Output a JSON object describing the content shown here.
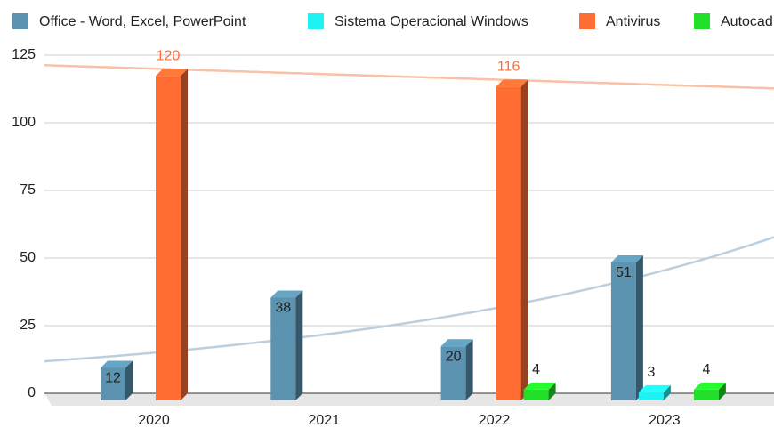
{
  "chart_data": {
    "type": "bar3d",
    "categories": [
      "2020",
      "2021",
      "2022",
      "2023"
    ],
    "series": [
      {
        "name": "Office - Word, Excel, PowerPoint",
        "color": "#5b93b0",
        "label_color": "#222222",
        "label_inside": true,
        "trendline": "exponential",
        "trend_color": "#bccfdf",
        "values": [
          12,
          38,
          20,
          51
        ]
      },
      {
        "name": "Sistema Operacional Windows",
        "color": "#1ef2f5",
        "label_color": "#222222",
        "values": [
          null,
          null,
          null,
          3
        ]
      },
      {
        "name": "Antivirus",
        "color": "#ff6d33",
        "label_color": "#ff6d33",
        "trendline": "linear",
        "trend_color": "#f9c2a8",
        "values": [
          120,
          null,
          116,
          null
        ]
      },
      {
        "name": "Autocad",
        "color": "#22e02a",
        "label_color": "#222222",
        "values": [
          null,
          null,
          4,
          4
        ]
      }
    ],
    "ylim": [
      0,
      125
    ],
    "yticks": [
      0,
      25,
      50,
      75,
      100,
      125
    ],
    "grid": true,
    "legend": "top"
  }
}
